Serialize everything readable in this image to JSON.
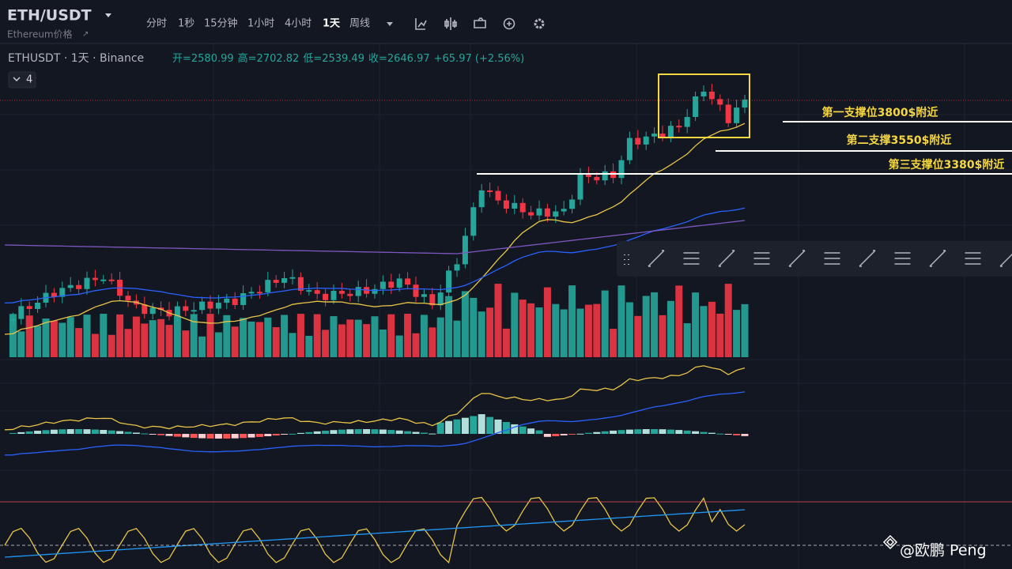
{
  "header": {
    "symbol": "ETH/USDT",
    "subtitle": "Ethereum价格",
    "intervals": [
      "分时",
      "1秒",
      "15分钟",
      "1小时",
      "4小时",
      "1天",
      "周线"
    ],
    "active_interval": "1天"
  },
  "legend": {
    "instrument": "ETHUSDT · 1天 · Binance",
    "open": "开=2580.99",
    "high": "高=2702.82",
    "low": "低=2539.49",
    "close": "收=2646.97",
    "change": "+65.97 (+2.56%)",
    "indicator_count": "4"
  },
  "annotations": [
    "第一支撑位3800$附近",
    "第二支撑3550$附近",
    "第三支撑位3380$附近"
  ],
  "watermark": "@欧鹏 Peng"
}
